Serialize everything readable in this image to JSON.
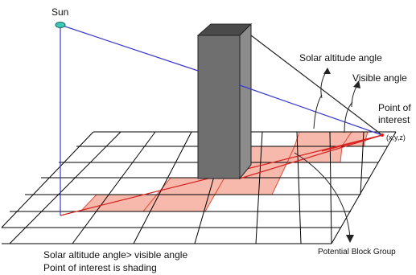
{
  "labels": {
    "sun": "Sun",
    "solar_altitude_angle": "Solar altitude angle",
    "visible_angle": "Visible angle",
    "point_of_interest_line1": "Point of",
    "point_of_interest_line2": "interest",
    "coordinates": "(x,y,z)",
    "potential_block_group": "Potential Block Group",
    "caption_line1": "Solar altitude angle> visible angle",
    "caption_line2": "Point of interest is shading"
  },
  "colors": {
    "grid_line": "#000000",
    "shaded_cell_fill": "#f7b9ac",
    "shaded_cell_edge": "#e0503c",
    "sun_ray": "#3a3ad0",
    "visible_line": "#222222",
    "ground_path": "#d82020",
    "building_front": "#6f6f6f",
    "building_top": "#4a4a4a",
    "building_side": "#8c8c8c",
    "sun_fill": "#3fc7b8"
  }
}
